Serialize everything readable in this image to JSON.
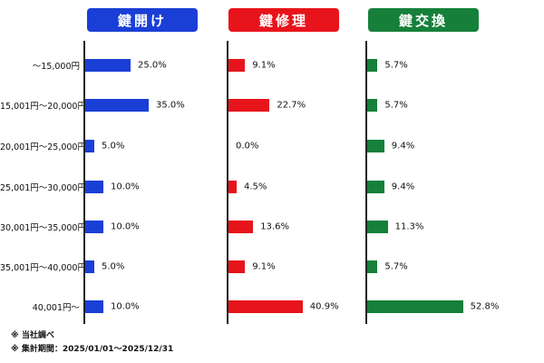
{
  "chart_data": {
    "type": "bar",
    "orientation": "horizontal",
    "categories": [
      "～15,000円",
      "15,001円～20,000円",
      "20,001円～25,000円",
      "25,001円～30,000円",
      "30,001円～35,000円",
      "35,001円～40,000円",
      "40,001円～"
    ],
    "series": [
      {
        "name": "鍵開け",
        "color": "#1a3fd6",
        "values": [
          25.0,
          35.0,
          5.0,
          10.0,
          10.0,
          5.0,
          10.0
        ],
        "value_labels": [
          "25.0%",
          "35.0%",
          "5.0%",
          "10.0%",
          "10.0%",
          "5.0%",
          "10.0%"
        ]
      },
      {
        "name": "鍵修理",
        "color": "#e8141c",
        "values": [
          9.1,
          22.7,
          0.0,
          4.5,
          13.6,
          9.1,
          40.9
        ],
        "value_labels": [
          "9.1%",
          "22.7%",
          "0.0%",
          "4.5%",
          "13.6%",
          "9.1%",
          "40.9%"
        ]
      },
      {
        "name": "鍵交換",
        "color": "#16803a",
        "values": [
          5.7,
          5.7,
          9.4,
          9.4,
          11.3,
          5.7,
          52.8
        ],
        "value_labels": [
          "5.7%",
          "5.7%",
          "9.4%",
          "9.4%",
          "11.3%",
          "5.7%",
          "52.8%"
        ]
      }
    ],
    "unit": "%",
    "grid": false,
    "legend": "panel headers"
  },
  "notes": [
    "※ 当社調べ",
    "※ 集計期間：2025/01/01～2025/12/31"
  ]
}
